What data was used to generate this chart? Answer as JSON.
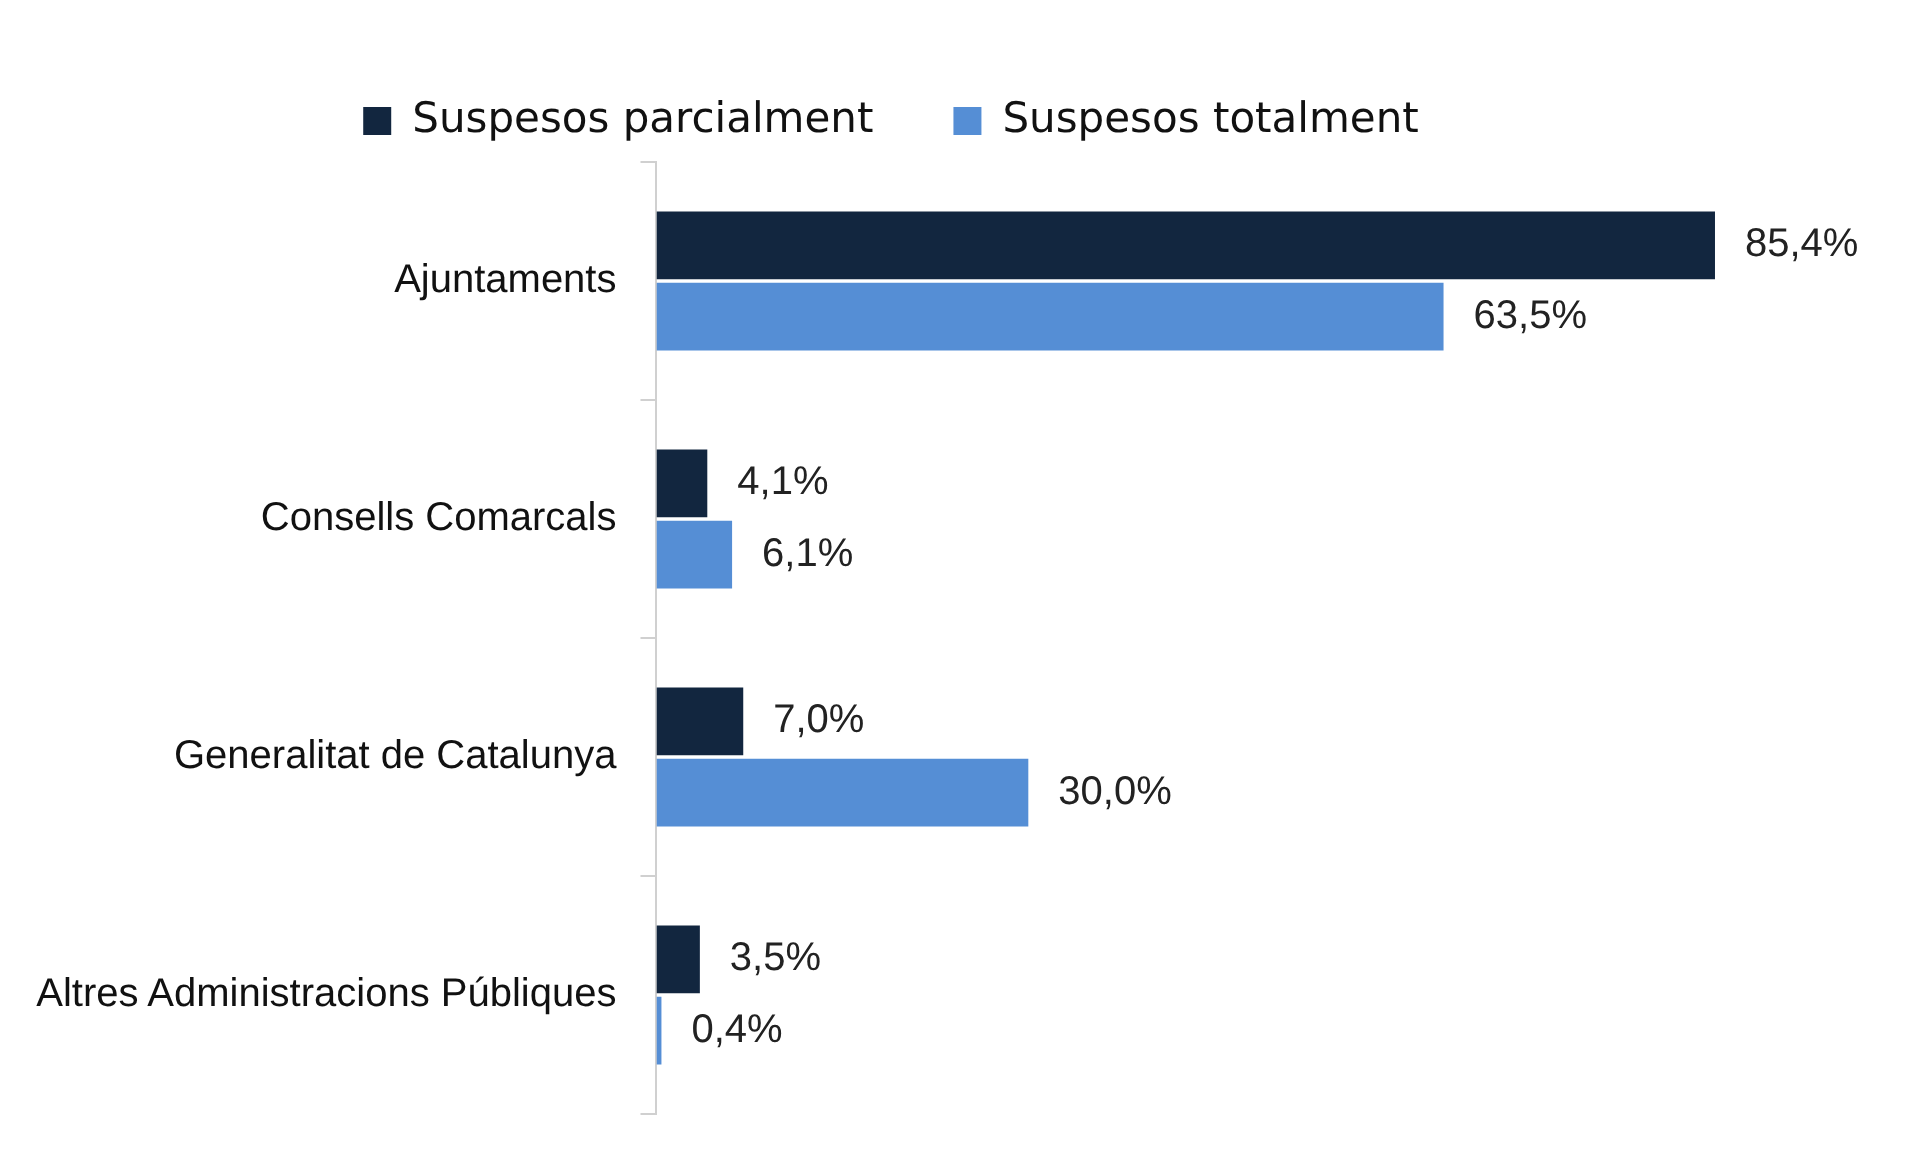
{
  "chart_data": {
    "type": "bar",
    "orientation": "horizontal",
    "legend": "top",
    "categories": [
      "Ajuntaments",
      "Consells Comarcals",
      "Generalitat de Catalunya",
      "Altres Administracions Públiques"
    ],
    "series": [
      {
        "name": "Suspesos parcialment",
        "color": "#12263f",
        "values": [
          85.4,
          4.1,
          7.0,
          3.5
        ],
        "value_labels": [
          "85,4%",
          "4,1%",
          "7,0%",
          "3,5%"
        ]
      },
      {
        "name": "Suspesos totalment",
        "color": "#558ed5",
        "values": [
          63.5,
          6.1,
          30.0,
          0.4
        ],
        "value_labels": [
          "63,5%",
          "6,1%",
          "30,0%",
          "0,4%"
        ]
      }
    ]
  }
}
